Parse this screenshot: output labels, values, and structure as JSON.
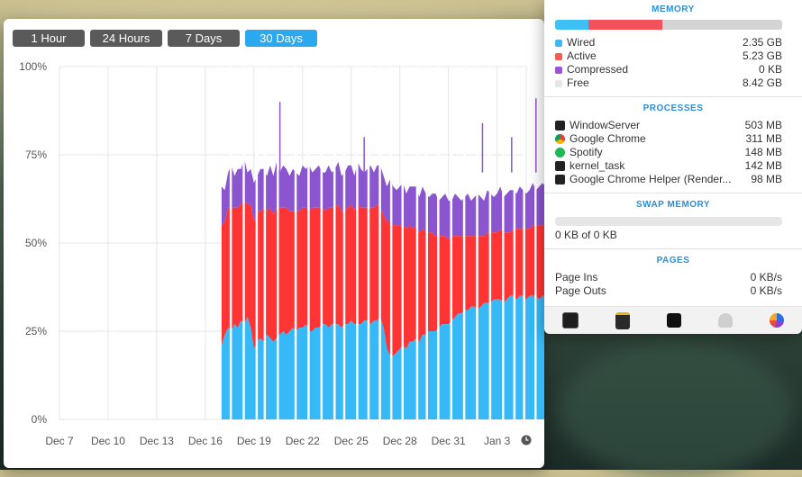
{
  "range_buttons": [
    {
      "label": "1 Hour",
      "active": false
    },
    {
      "label": "24 Hours",
      "active": false
    },
    {
      "label": "7 Days",
      "active": false
    },
    {
      "label": "30 Days",
      "active": true
    }
  ],
  "chart_data": {
    "type": "area",
    "stacked": true,
    "x_tick_labels": [
      "Dec 7",
      "Dec 10",
      "Dec 13",
      "Dec 16",
      "Dec 19",
      "Dec 22",
      "Dec 25",
      "Dec 28",
      "Dec 31",
      "Jan 3"
    ],
    "y_tick_labels": [
      "0%",
      "25%",
      "50%",
      "75%",
      "100%"
    ],
    "ylim": [
      0,
      100
    ],
    "grid": true,
    "series": [
      {
        "name": "Wired",
        "color": "#36b9f6"
      },
      {
        "name": "Active",
        "color": "#ff3434"
      },
      {
        "name": "Compressed",
        "color": "#8b55d0"
      }
    ],
    "data_start_index": 10.0,
    "x": [
      10.0,
      10.2,
      10.4,
      10.6,
      10.8,
      11.0,
      11.2,
      11.4,
      11.6,
      11.8,
      12.0,
      12.2,
      12.4,
      12.6,
      12.8,
      13.0,
      13.2,
      13.4,
      13.6,
      13.8,
      14.0,
      14.2,
      14.4,
      14.6,
      14.8,
      15.0,
      15.2,
      15.4,
      15.6,
      15.8,
      16.0,
      16.2,
      16.4,
      16.6,
      16.8,
      17.0,
      17.2,
      17.4,
      17.6,
      17.8,
      18.0,
      18.2,
      18.4,
      18.6,
      18.8,
      19.0,
      19.2,
      19.4,
      19.6,
      19.8,
      20.0,
      20.2,
      20.4,
      20.6,
      20.8,
      21.0,
      21.2,
      21.4,
      21.6,
      21.8,
      22.0,
      22.2,
      22.4,
      22.6,
      22.8,
      23.0,
      23.2,
      23.4,
      23.6,
      23.8,
      24.0,
      24.2,
      24.4,
      24.6,
      24.8,
      25.0,
      25.2,
      25.4,
      25.6,
      25.8,
      26.0,
      26.2,
      26.4,
      26.6,
      26.8,
      27.0,
      27.2,
      27.4,
      27.6,
      27.8,
      28.0,
      28.2,
      28.4,
      28.6,
      28.8,
      29.0,
      29.2,
      29.4,
      29.6,
      29.8,
      30.0
    ],
    "wired": [
      21,
      24,
      26,
      25,
      27,
      26,
      28,
      27,
      29,
      26,
      20,
      22,
      23,
      22,
      24,
      23,
      22,
      23,
      24,
      25,
      24,
      25,
      26,
      25,
      26,
      26,
      27,
      25,
      25,
      26,
      26,
      27,
      27,
      26,
      27,
      27,
      27,
      26,
      27,
      27,
      28,
      27,
      27,
      27,
      28,
      28,
      27,
      28,
      28,
      29,
      26,
      20,
      18,
      18,
      19,
      20,
      21,
      20,
      22,
      22,
      23,
      22,
      24,
      24,
      25,
      25,
      25,
      26,
      27,
      27,
      27,
      28,
      29,
      30,
      30,
      31,
      31,
      32,
      32,
      31,
      32,
      33,
      33,
      33,
      34,
      34,
      34,
      33,
      34,
      35,
      35,
      34,
      35,
      35,
      34,
      35,
      35,
      35,
      34,
      35,
      35
    ],
    "active": [
      34,
      32,
      34,
      35,
      33,
      34,
      33,
      35,
      32,
      35,
      36,
      37,
      36,
      38,
      35,
      37,
      36,
      37,
      36,
      35,
      36,
      34,
      33,
      34,
      33,
      34,
      33,
      34,
      35,
      34,
      34,
      33,
      32,
      34,
      33,
      33,
      34,
      33,
      32,
      33,
      33,
      32,
      34,
      33,
      32,
      32,
      33,
      32,
      33,
      31,
      32,
      36,
      38,
      37,
      36,
      35,
      34,
      34,
      33,
      32,
      32,
      31,
      30,
      29,
      28,
      28,
      27,
      26,
      25,
      25,
      24,
      24,
      23,
      22,
      22,
      21,
      21,
      20,
      20,
      21,
      20,
      19,
      20,
      20,
      19,
      19,
      20,
      20,
      19,
      18,
      19,
      20,
      19,
      19,
      20,
      19,
      20,
      20,
      21,
      20,
      20
    ],
    "compressed": [
      11,
      9,
      10,
      12,
      9,
      11,
      10,
      12,
      9,
      10,
      11,
      10,
      12,
      11,
      10,
      12,
      11,
      13,
      10,
      12,
      11,
      10,
      12,
      11,
      10,
      12,
      11,
      13,
      10,
      11,
      12,
      10,
      11,
      12,
      10,
      11,
      12,
      10,
      11,
      12,
      11,
      10,
      12,
      11,
      10,
      11,
      12,
      10,
      11,
      12,
      11,
      10,
      12,
      11,
      10,
      11,
      12,
      10,
      11,
      12,
      11,
      10,
      12,
      11,
      10,
      11,
      12,
      10,
      11,
      12,
      11,
      10,
      12,
      11,
      10,
      11,
      12,
      10,
      11,
      12,
      11,
      10,
      12,
      11,
      10,
      11,
      12,
      10,
      11,
      12,
      11,
      10,
      12,
      11,
      10,
      11,
      12,
      10,
      11,
      12,
      11
    ]
  },
  "memory": {
    "title": "MEMORY",
    "bar": [
      {
        "name": "Wired",
        "fraction": 0.147,
        "color": "#3fc0f5"
      },
      {
        "name": "Active",
        "fraction": 0.327,
        "color": "#f4525a"
      },
      {
        "name": "Free",
        "fraction": 0.526,
        "color": "#d4d4d4"
      }
    ],
    "items": [
      {
        "label": "Wired",
        "value": "2.35 GB",
        "color": "#3fb7f3"
      },
      {
        "label": "Active",
        "value": "5.23 GB",
        "color": "#f55b4e"
      },
      {
        "label": "Compressed",
        "value": "0 KB",
        "color": "#9a54d6"
      },
      {
        "label": "Free",
        "value": "8.42 GB",
        "color": "#e6e6e6"
      }
    ]
  },
  "processes": {
    "title": "PROCESSES",
    "items": [
      {
        "name": "WindowServer",
        "value": "503 MB",
        "icon": "terminal-icon"
      },
      {
        "name": "Google Chrome",
        "value": "311 MB",
        "icon": "chrome-icon"
      },
      {
        "name": "Spotify",
        "value": "148 MB",
        "icon": "spotify-icon"
      },
      {
        "name": "kernel_task",
        "value": "142 MB",
        "icon": "terminal-icon"
      },
      {
        "name": "Google Chrome Helper (Render...",
        "value": "98 MB",
        "icon": "terminal-icon"
      }
    ]
  },
  "swap": {
    "title": "SWAP MEMORY",
    "text": "0 KB of 0 KB"
  },
  "pages": {
    "title": "PAGES",
    "items": [
      {
        "label": "Page Ins",
        "value": "0 KB/s"
      },
      {
        "label": "Page Outs",
        "value": "0 KB/s"
      }
    ]
  },
  "dock": [
    "activity-monitor-icon",
    "console-icon",
    "terminal-icon",
    "automator-icon",
    "system-info-icon"
  ]
}
